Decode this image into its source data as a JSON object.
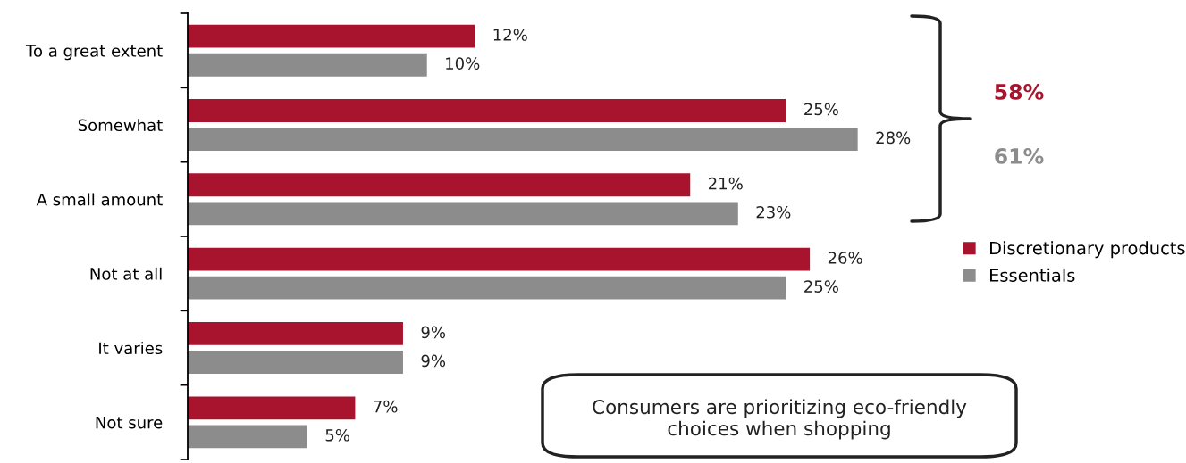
{
  "chart_data": {
    "type": "bar",
    "orientation": "horizontal",
    "categories": [
      "To a great extent",
      "Somewhat",
      "A small amount",
      "Not at all",
      "It varies",
      "Not sure"
    ],
    "series": [
      {
        "name": "Discretionary products",
        "color": "#a8132d",
        "values": [
          12,
          25,
          21,
          26,
          9,
          7
        ],
        "value_labels": [
          "12%",
          "25%",
          "21%",
          "26%",
          "9%",
          "7%"
        ]
      },
      {
        "name": "Essentials",
        "color": "#8c8c8c",
        "values": [
          10,
          28,
          23,
          25,
          9,
          5
        ],
        "value_labels": [
          "10%",
          "28%",
          "23%",
          "25%",
          "9%",
          "5%"
        ]
      }
    ],
    "annotations": [
      "58%",
      "61%",
      "Consumers are prioritizing eco-friendly choices when shopping"
    ],
    "legend": "right",
    "grid": false,
    "tick_labels": "y"
  }
}
